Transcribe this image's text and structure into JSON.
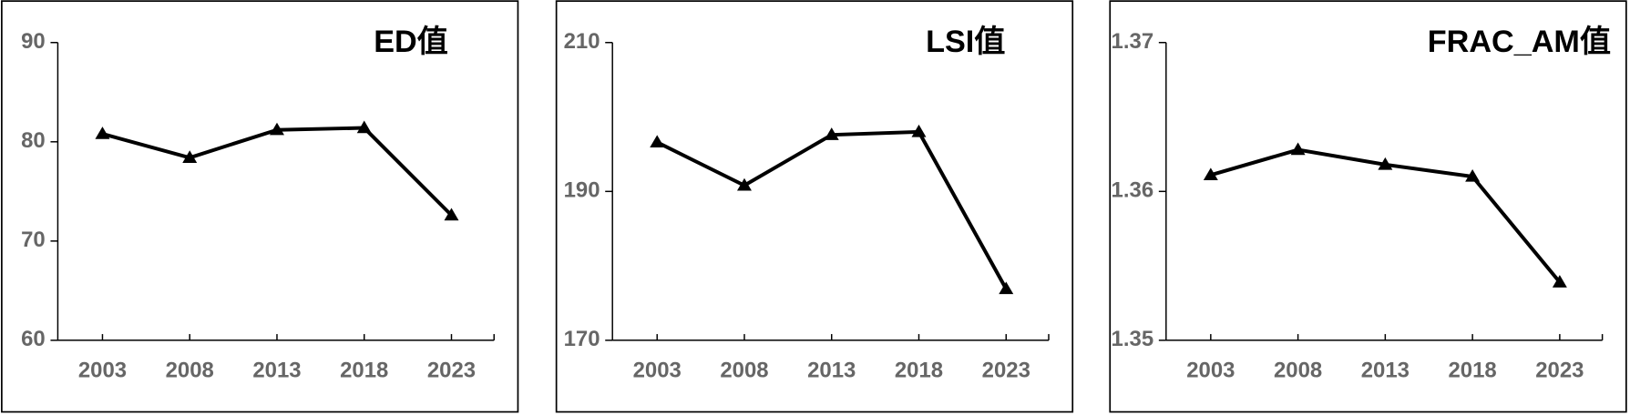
{
  "chart_data": [
    {
      "type": "line",
      "title": "ED值",
      "x": [
        "2003",
        "2008",
        "2013",
        "2018",
        "2023"
      ],
      "series": [
        {
          "color": "#000000",
          "values": [
            80.8,
            78.4,
            81.2,
            81.4,
            72.6
          ]
        }
      ],
      "ylim": [
        60,
        90
      ],
      "yticks": [
        60,
        70,
        80,
        90
      ],
      "marker": "triangle"
    },
    {
      "type": "line",
      "title": "LSI值",
      "x": [
        "2003",
        "2008",
        "2013",
        "2018",
        "2023"
      ],
      "series": [
        {
          "color": "#000000",
          "values": [
            196.6,
            190.8,
            197.6,
            198.0,
            176.9
          ]
        }
      ],
      "ylim": [
        170,
        210
      ],
      "yticks": [
        170,
        190,
        210
      ],
      "marker": "triangle"
    },
    {
      "type": "line",
      "title": "FRAC_AM值",
      "x": [
        "2003",
        "2008",
        "2013",
        "2018",
        "2023"
      ],
      "series": [
        {
          "color": "#000000",
          "values": [
            1.3611,
            1.3628,
            1.3618,
            1.361,
            1.3539
          ]
        }
      ],
      "ylim": [
        1.35,
        1.37
      ],
      "yticks": [
        1.35,
        1.36,
        1.37
      ],
      "marker": "triangle"
    }
  ]
}
